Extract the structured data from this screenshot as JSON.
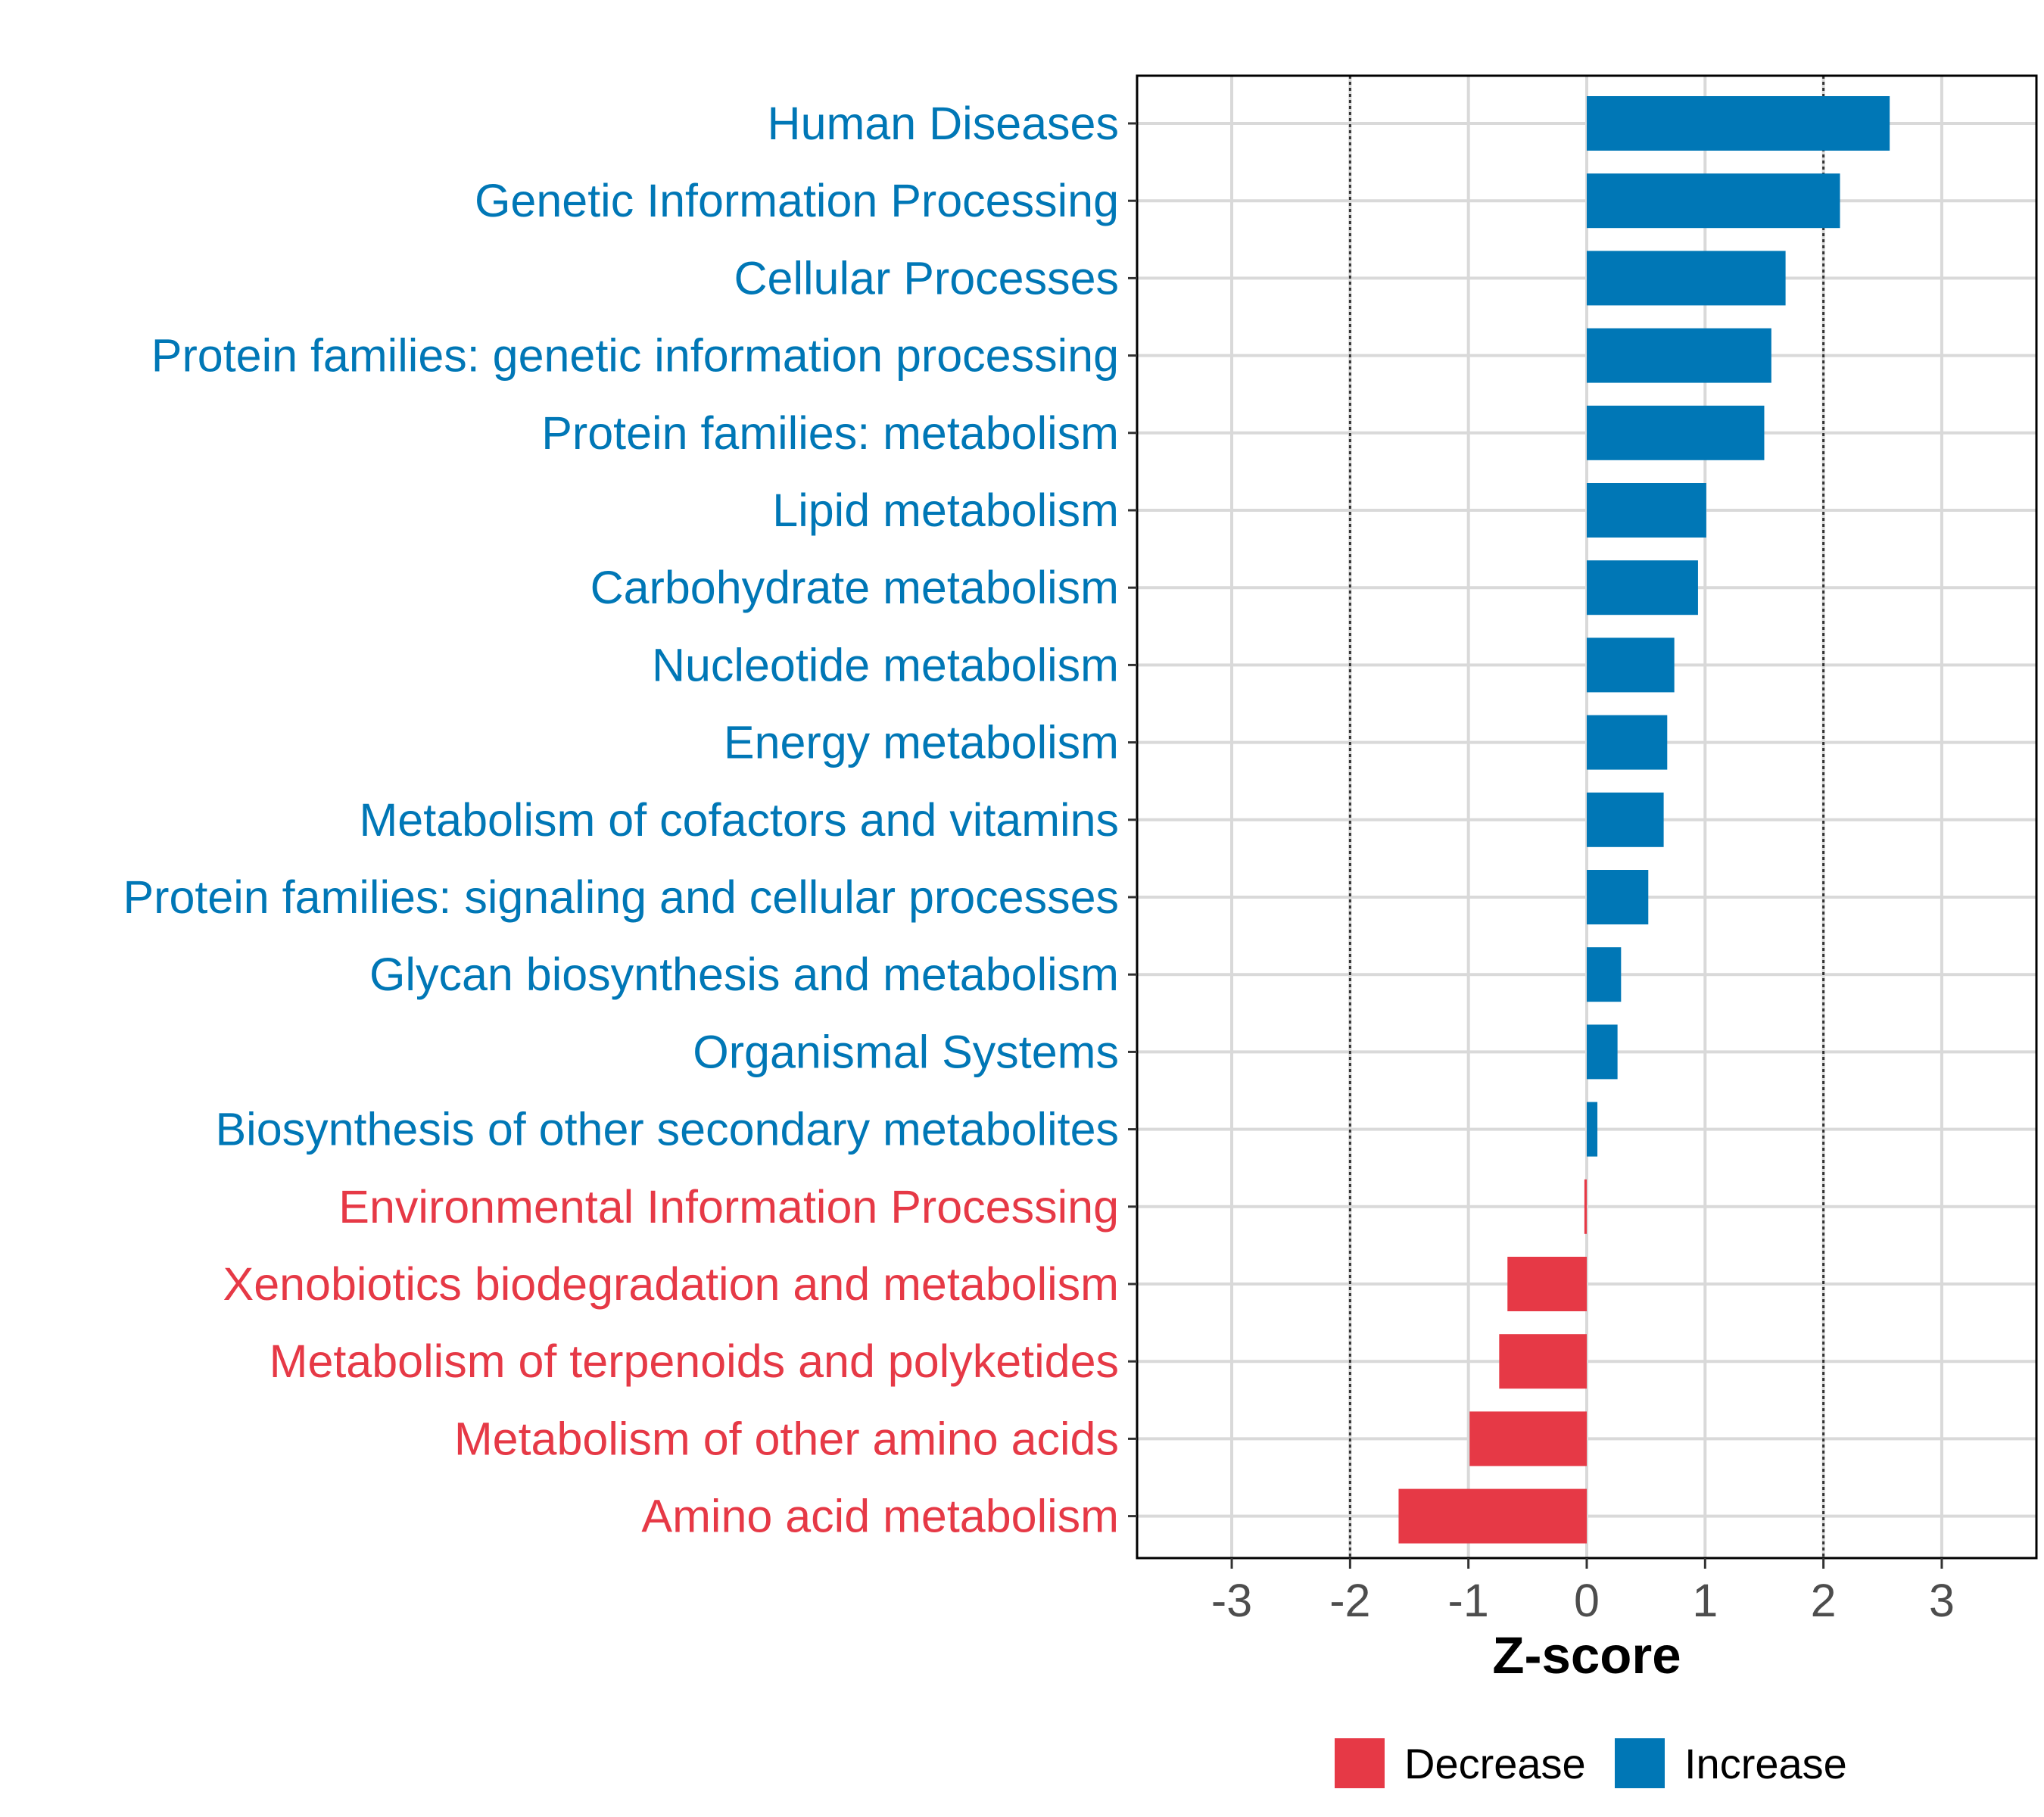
{
  "chart_data": {
    "type": "bar",
    "orientation": "horizontal",
    "xlabel": "Z-score",
    "ylabel": "",
    "xlim": [
      -3.8,
      3.8
    ],
    "xticks": [
      -3,
      -2,
      -1,
      0,
      1,
      2,
      3
    ],
    "threshold_lines": [
      -2,
      2
    ],
    "grid": true,
    "legend_position": "bottom",
    "legend": [
      {
        "label": "Decrease",
        "color": "#E63946"
      },
      {
        "label": "Increase",
        "color": "#0077B6"
      }
    ],
    "categories": [
      "Human Diseases",
      "Genetic Information Processing",
      "Cellular Processes",
      "Protein families: genetic information processing",
      "Protein families: metabolism",
      "Lipid metabolism",
      "Carbohydrate metabolism",
      "Nucleotide metabolism",
      "Energy metabolism",
      "Metabolism of cofactors and vitamins",
      "Protein families: signaling and cellular processes",
      "Glycan biosynthesis and metabolism",
      "Organismal Systems",
      "Biosynthesis of other secondary metabolites",
      "Environmental Information Processing",
      "Xenobiotics biodegradation and metabolism",
      "Metabolism of terpenoids and polyketides",
      "Metabolism of other amino acids",
      "Amino acid metabolism"
    ],
    "values": [
      2.56,
      2.14,
      1.68,
      1.56,
      1.5,
      1.01,
      0.94,
      0.74,
      0.68,
      0.65,
      0.52,
      0.29,
      0.26,
      0.09,
      -0.02,
      -0.67,
      -0.74,
      -0.99,
      -1.59
    ],
    "direction": [
      "Increase",
      "Increase",
      "Increase",
      "Increase",
      "Increase",
      "Increase",
      "Increase",
      "Increase",
      "Increase",
      "Increase",
      "Increase",
      "Increase",
      "Increase",
      "Increase",
      "Decrease",
      "Decrease",
      "Decrease",
      "Decrease",
      "Decrease"
    ]
  }
}
